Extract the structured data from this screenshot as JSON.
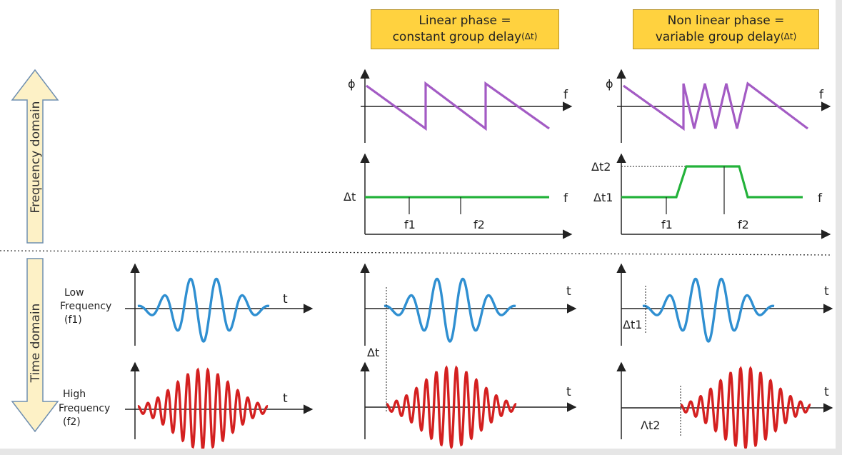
{
  "header_boxes": {
    "linear": {
      "line1": "Linear phase =",
      "line2": "constant group delay",
      "sub": "(Δt)"
    },
    "nonlinear": {
      "line1": "Non linear phase =",
      "line2": "variable group delay",
      "sub": "(Δt)"
    }
  },
  "side_labels": {
    "frequency": "Frequency domain",
    "time": "Time domain"
  },
  "axis_labels": {
    "phi": "ϕ",
    "f": "f",
    "t": "t",
    "dt": "Δt",
    "dt1": "Δt1",
    "dt2": "Δt2",
    "dt2_alt": "Λt2",
    "f1": "f1",
    "f2": "f2"
  },
  "signal_labels": {
    "low": {
      "line1": "Low",
      "line2": "Frequency",
      "line3": "(f1)"
    },
    "high": {
      "line1": "High",
      "line2": "Frequency",
      "line3": "(f2)"
    }
  },
  "colors": {
    "phase": "#a35bc4",
    "delay": "#23b23a",
    "low_wave": "#2f8fd1",
    "high_wave": "#d42020",
    "arrow_fill": "#fdf1c6",
    "arrow_stroke": "#6f8fb0",
    "box_fill": "#ffd23f"
  }
}
